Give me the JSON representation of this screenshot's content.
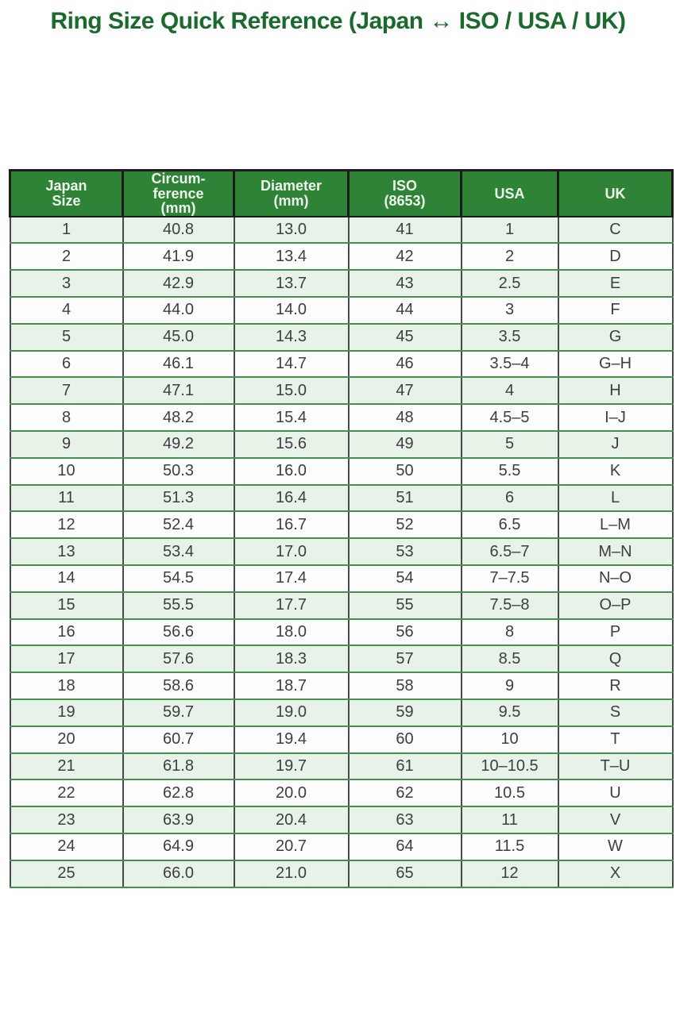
{
  "page_title": "Ring Size Quick Reference (Japan ↔ ISO / USA / UK)",
  "colors": {
    "title_text": "#1a6a2e",
    "header_bg": "#2f8336",
    "header_text": "#eef7ec",
    "row_alt_bg": "#e7f3e9",
    "grid_green": "#44914c",
    "grid_dark": "#4a4a4a"
  },
  "chart_data": {
    "type": "table",
    "title": "Ring Size Quick Reference (Japan ↔ ISO / USA / UK)",
    "columns": [
      "Japan\nSize",
      "Circum-\nference\n(mm)",
      "Diameter\n(mm)",
      "ISO\n(8653)",
      "USA",
      "UK"
    ],
    "column_keys": [
      "japan-size",
      "circumference-mm",
      "diameter-mm",
      "iso-8653",
      "usa",
      "uk"
    ],
    "rows": [
      [
        "1",
        "40.8",
        "13.0",
        "41",
        "1",
        "C"
      ],
      [
        "2",
        "41.9",
        "13.4",
        "42",
        "2",
        "D"
      ],
      [
        "3",
        "42.9",
        "13.7",
        "43",
        "2.5",
        "E"
      ],
      [
        "4",
        "44.0",
        "14.0",
        "44",
        "3",
        "F"
      ],
      [
        "5",
        "45.0",
        "14.3",
        "45",
        "3.5",
        "G"
      ],
      [
        "6",
        "46.1",
        "14.7",
        "46",
        "3.5–4",
        "G–H"
      ],
      [
        "7",
        "47.1",
        "15.0",
        "47",
        "4",
        "H"
      ],
      [
        "8",
        "48.2",
        "15.4",
        "48",
        "4.5–5",
        "I–J"
      ],
      [
        "9",
        "49.2",
        "15.6",
        "49",
        "5",
        "J"
      ],
      [
        "10",
        "50.3",
        "16.0",
        "50",
        "5.5",
        "K"
      ],
      [
        "11",
        "51.3",
        "16.4",
        "51",
        "6",
        "L"
      ],
      [
        "12",
        "52.4",
        "16.7",
        "52",
        "6.5",
        "L–M"
      ],
      [
        "13",
        "53.4",
        "17.0",
        "53",
        "6.5–7",
        "M–N"
      ],
      [
        "14",
        "54.5",
        "17.4",
        "54",
        "7–7.5",
        "N–O"
      ],
      [
        "15",
        "55.5",
        "17.7",
        "55",
        "7.5–8",
        "O–P"
      ],
      [
        "16",
        "56.6",
        "18.0",
        "56",
        "8",
        "P"
      ],
      [
        "17",
        "57.6",
        "18.3",
        "57",
        "8.5",
        "Q"
      ],
      [
        "18",
        "58.6",
        "18.7",
        "58",
        "9",
        "R"
      ],
      [
        "19",
        "59.7",
        "19.0",
        "59",
        "9.5",
        "S"
      ],
      [
        "20",
        "60.7",
        "19.4",
        "60",
        "10",
        "T"
      ],
      [
        "21",
        "61.8",
        "19.7",
        "61",
        "10–10.5",
        "T–U"
      ],
      [
        "22",
        "62.8",
        "20.0",
        "62",
        "10.5",
        "U"
      ],
      [
        "23",
        "63.9",
        "20.4",
        "63",
        "11",
        "V"
      ],
      [
        "24",
        "64.9",
        "20.7",
        "64",
        "11.5",
        "W"
      ],
      [
        "25",
        "66.0",
        "21.0",
        "65",
        "12",
        "X"
      ]
    ],
    "layout": {
      "legend": "none",
      "grid": "on",
      "striped_rows": true,
      "header_position": "top"
    }
  }
}
